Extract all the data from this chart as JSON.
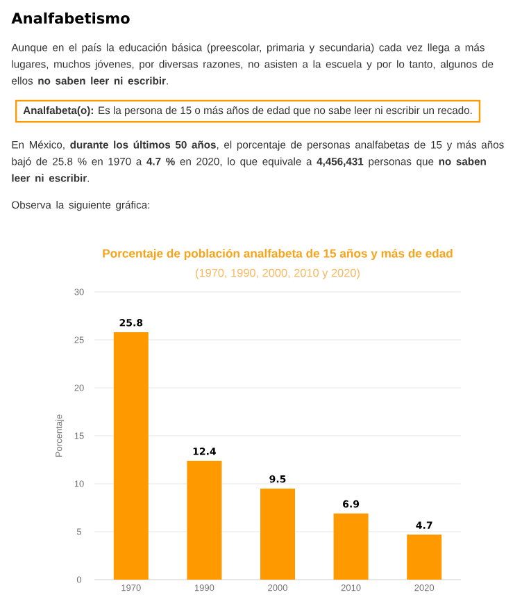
{
  "chart_data": {
    "type": "bar",
    "title": "Porcentaje de población analfabeta de 15 años y más de edad",
    "subtitle": "(1970, 1990, 2000, 2010 y 2020)",
    "ylabel": "Porcentaje",
    "annotations": [
      "Analfabetismo",
      "Aunque en el país la educación básica (preescolar, primaria y secundaria) cada vez llega a más lugares, muchos jóvenes, por diversas razones, no asisten a la escuela y por lo tanto, algunos de ellos **no saben leer ni escribir**.",
      "**Analfabeta(o):** Es la persona de 15 o más años de edad que no sabe leer ni escribir un recado.",
      "En México, **durante los últimos 50 años**, el porcentaje de personas analfabetas de 15 y más años bajó de 25.8 % en 1970 a **4.7 %** en 2020, lo que equivale a **4,456,431** personas que **no saben leer ni escribir**.",
      "Observa la siguiente gráfica:"
    ],
    "categories": [
      "1970",
      "1990",
      "2000",
      "2010",
      "2020"
    ],
    "values": [
      25.8,
      12.4,
      9.5,
      6.9,
      4.7
    ],
    "color": "#ff9900",
    "ylim": [
      0,
      30
    ],
    "yticks": [
      0,
      5,
      10,
      15,
      20,
      25,
      30
    ],
    "grid": "y",
    "data_labels": true
  }
}
